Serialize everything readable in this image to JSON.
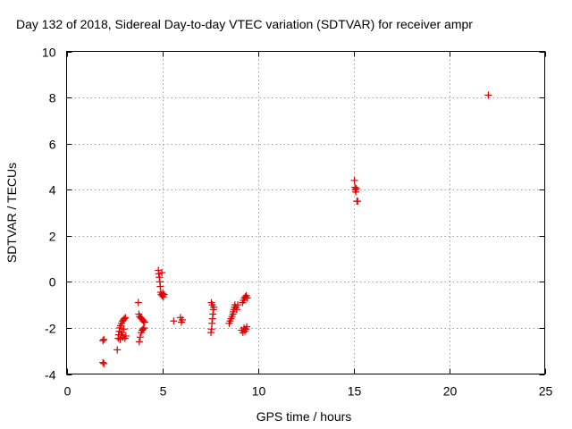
{
  "chart_data": {
    "type": "scatter",
    "title": "Day 132 of 2018, Sidereal Day-to-day VTEC variation (SDTVAR) for receiver ampr",
    "xlabel": "GPS time / hours",
    "ylabel": "SDTVAR / TECUs",
    "xlim": [
      0,
      25
    ],
    "ylim": [
      -4,
      10
    ],
    "xticks": [
      "0",
      "5",
      "10",
      "15",
      "20",
      "25"
    ],
    "yticks": [
      "-4",
      "-2",
      "0",
      "2",
      "4",
      "6",
      "8",
      "10"
    ],
    "grid": true,
    "marker": "+",
    "color": "#e00000",
    "series": [
      {
        "points": [
          [
            1.9,
            -2.55
          ],
          [
            1.95,
            -2.5
          ],
          [
            1.9,
            -3.5
          ],
          [
            1.95,
            -3.55
          ],
          [
            2.65,
            -2.95
          ],
          [
            2.7,
            -2.45
          ],
          [
            2.72,
            -2.3
          ],
          [
            2.75,
            -2.15
          ],
          [
            2.78,
            -2.0
          ],
          [
            2.8,
            -2.5
          ],
          [
            2.82,
            -1.9
          ],
          [
            2.85,
            -2.3
          ],
          [
            2.88,
            -1.8
          ],
          [
            2.9,
            -2.2
          ],
          [
            2.92,
            -1.7
          ],
          [
            2.95,
            -2.4
          ],
          [
            2.98,
            -1.65
          ],
          [
            3.0,
            -2.05
          ],
          [
            3.02,
            -1.6
          ],
          [
            3.05,
            -2.45
          ],
          [
            3.08,
            -1.55
          ],
          [
            3.1,
            -2.35
          ],
          [
            3.75,
            -0.9
          ],
          [
            3.78,
            -1.4
          ],
          [
            3.8,
            -2.6
          ],
          [
            3.82,
            -1.5
          ],
          [
            3.85,
            -2.4
          ],
          [
            3.88,
            -1.55
          ],
          [
            3.9,
            -2.2
          ],
          [
            3.92,
            -1.6
          ],
          [
            3.95,
            -2.1
          ],
          [
            3.98,
            -1.65
          ],
          [
            4.0,
            -2.05
          ],
          [
            4.02,
            -1.7
          ],
          [
            4.05,
            -2.0
          ],
          [
            4.08,
            -1.75
          ],
          [
            4.8,
            0.5
          ],
          [
            4.82,
            0.35
          ],
          [
            4.85,
            0.2
          ],
          [
            4.88,
            0.0
          ],
          [
            4.9,
            -0.2
          ],
          [
            4.92,
            -0.45
          ],
          [
            4.95,
            -0.55
          ],
          [
            4.98,
            0.4
          ],
          [
            5.0,
            -0.6
          ],
          [
            5.03,
            -0.5
          ],
          [
            5.06,
            -0.65
          ],
          [
            5.1,
            -0.55
          ],
          [
            5.6,
            -1.7
          ],
          [
            5.95,
            -1.55
          ],
          [
            6.0,
            -1.75
          ],
          [
            6.05,
            -1.65
          ],
          [
            7.55,
            -2.2
          ],
          [
            7.57,
            -0.9
          ],
          [
            7.58,
            -2.05
          ],
          [
            7.6,
            -1.8
          ],
          [
            7.62,
            -1.0
          ],
          [
            7.63,
            -1.6
          ],
          [
            7.65,
            -1.4
          ],
          [
            7.68,
            -1.2
          ],
          [
            7.7,
            -1.1
          ],
          [
            8.5,
            -1.8
          ],
          [
            8.55,
            -1.7
          ],
          [
            8.6,
            -1.6
          ],
          [
            8.65,
            -1.5
          ],
          [
            8.7,
            -1.4
          ],
          [
            8.72,
            -1.3
          ],
          [
            8.75,
            -1.2
          ],
          [
            8.78,
            -1.1
          ],
          [
            8.8,
            -1.0
          ],
          [
            8.85,
            -1.1
          ],
          [
            8.9,
            -1.2
          ],
          [
            8.95,
            -1.0
          ],
          [
            9.15,
            -2.1
          ],
          [
            9.2,
            -0.9
          ],
          [
            9.22,
            -2.2
          ],
          [
            9.25,
            -0.8
          ],
          [
            9.28,
            -2.0
          ],
          [
            9.3,
            -0.7
          ],
          [
            9.32,
            -2.15
          ],
          [
            9.35,
            -0.65
          ],
          [
            9.38,
            -2.05
          ],
          [
            9.4,
            -0.6
          ],
          [
            9.42,
            -1.95
          ],
          [
            9.45,
            -0.7
          ],
          [
            15.05,
            4.4
          ],
          [
            15.08,
            4.1
          ],
          [
            15.1,
            4.0
          ],
          [
            15.12,
            3.9
          ],
          [
            15.15,
            4.05
          ],
          [
            15.18,
            3.5
          ],
          [
            15.22,
            3.5
          ],
          [
            22.05,
            8.1
          ]
        ]
      }
    ]
  }
}
